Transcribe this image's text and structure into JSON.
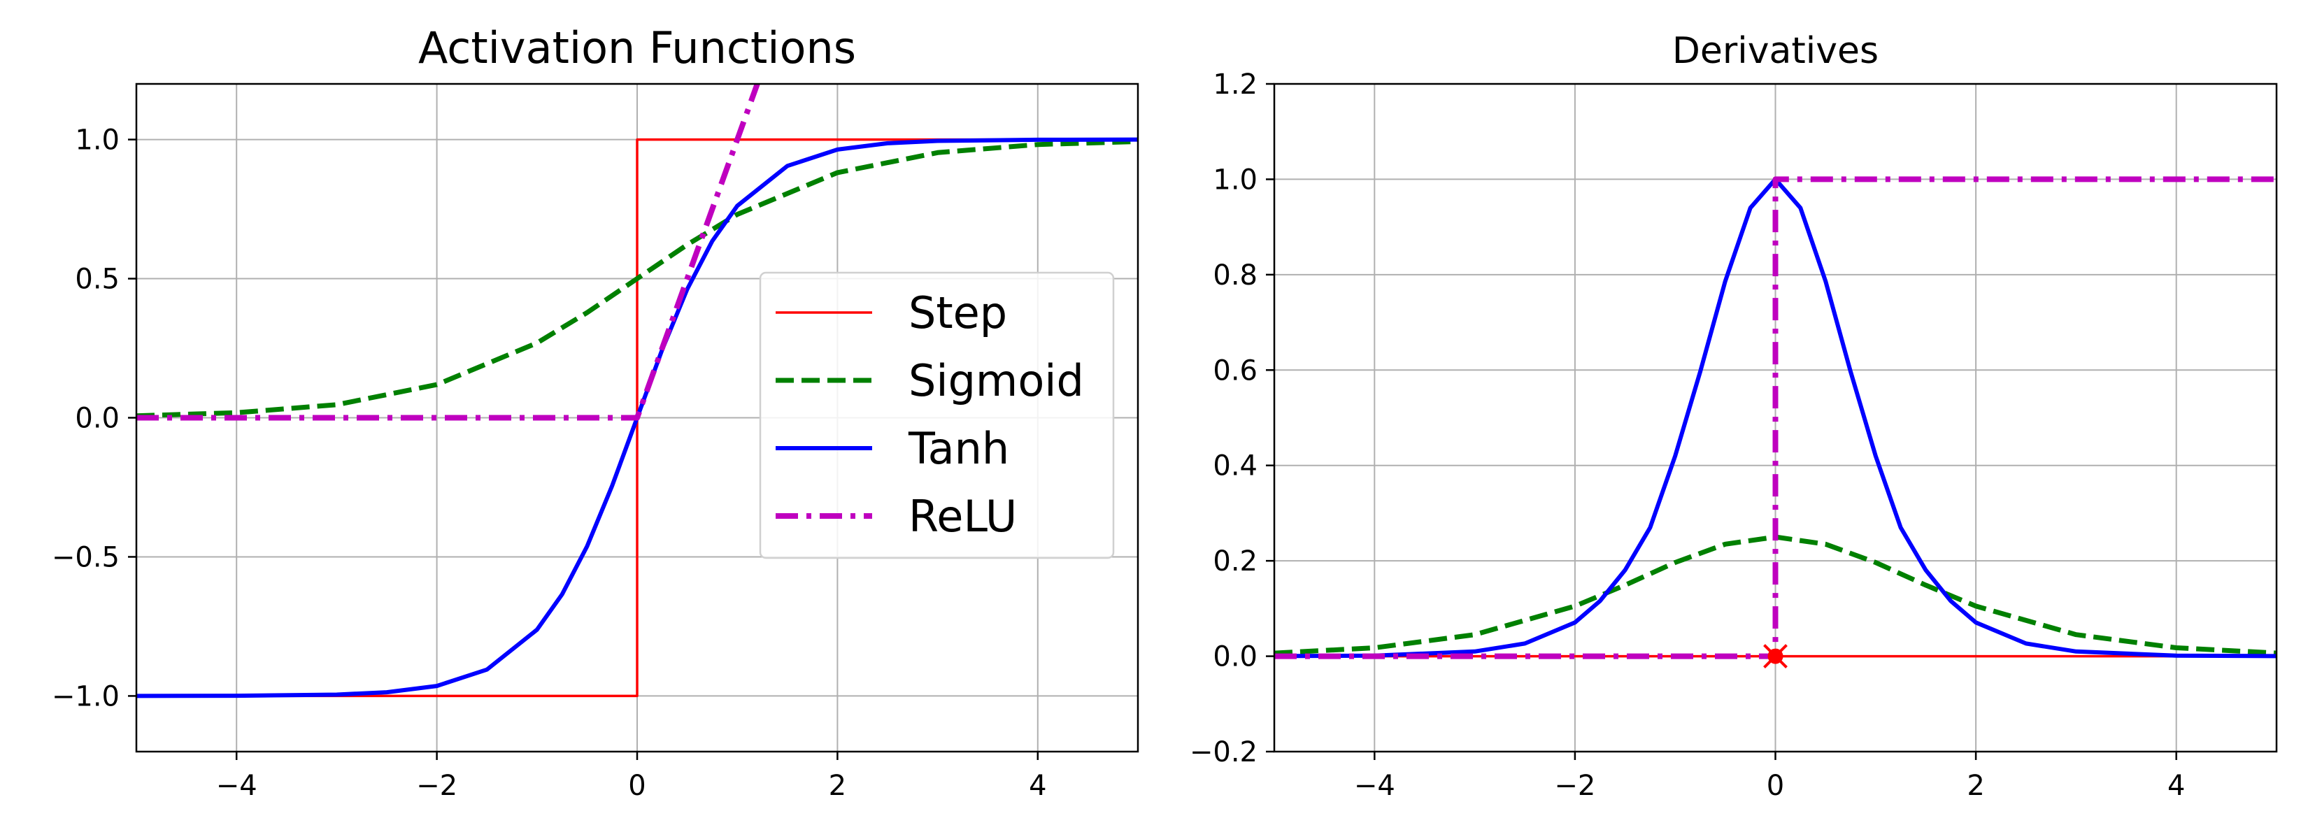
{
  "chart_data": [
    {
      "type": "line",
      "title": "Activation Functions",
      "xlabel": "",
      "ylabel": "",
      "xlim": [
        -5,
        5
      ],
      "ylim": [
        -1.2,
        1.2
      ],
      "xticks": [
        -4,
        -2,
        0,
        2,
        4
      ],
      "xtick_labels": [
        "−4",
        "−2",
        "0",
        "2",
        "4"
      ],
      "yticks": [
        -1.0,
        -0.5,
        0.0,
        0.5,
        1.0
      ],
      "ytick_labels": [
        "−1.0",
        "−0.5",
        "0.0",
        "0.5",
        "1.0"
      ],
      "grid": true,
      "legend": "center-right",
      "series": [
        {
          "name": "Step",
          "color": "#ff0000",
          "style": "solid",
          "x": [
            -5,
            0,
            0,
            5
          ],
          "y": [
            -1,
            -1,
            1,
            1
          ]
        },
        {
          "name": "Sigmoid",
          "color": "#008000",
          "style": "dashed",
          "x": [
            -5,
            -4,
            -3,
            -2,
            -1,
            -0.5,
            0,
            0.5,
            1,
            2,
            3,
            4,
            5
          ],
          "y": [
            0.007,
            0.018,
            0.047,
            0.119,
            0.269,
            0.378,
            0.5,
            0.622,
            0.731,
            0.881,
            0.953,
            0.982,
            0.993
          ]
        },
        {
          "name": "Tanh",
          "color": "#0000ff",
          "style": "solid",
          "x": [
            -5,
            -4,
            -3,
            -2.5,
            -2,
            -1.5,
            -1,
            -0.75,
            -0.5,
            -0.25,
            0,
            0.25,
            0.5,
            0.75,
            1,
            1.5,
            2,
            2.5,
            3,
            4,
            5
          ],
          "y": [
            -0.9999,
            -0.9993,
            -0.9951,
            -0.9866,
            -0.964,
            -0.9051,
            -0.7616,
            -0.6351,
            -0.4621,
            -0.2449,
            0,
            0.2449,
            0.4621,
            0.6351,
            0.7616,
            0.9051,
            0.964,
            0.9866,
            0.9951,
            0.9993,
            0.9999
          ]
        },
        {
          "name": "ReLU",
          "color": "#bf00bf",
          "style": "dashdot",
          "x": [
            -5,
            0,
            1.2
          ],
          "y": [
            0,
            0,
            1.2
          ]
        }
      ]
    },
    {
      "type": "line",
      "title": "Derivatives",
      "xlabel": "",
      "ylabel": "",
      "xlim": [
        -5,
        5
      ],
      "ylim": [
        -0.2,
        1.2
      ],
      "xticks": [
        -4,
        -2,
        0,
        2,
        4
      ],
      "xtick_labels": [
        "−4",
        "−2",
        "0",
        "2",
        "4"
      ],
      "yticks": [
        -0.2,
        0.0,
        0.2,
        0.4,
        0.6,
        0.8,
        1.0,
        1.2
      ],
      "ytick_labels": [
        "−0.2",
        "0.0",
        "0.2",
        "0.4",
        "0.6",
        "0.8",
        "1.0",
        "1.2"
      ],
      "grid": true,
      "series": [
        {
          "name": "Step",
          "color": "#ff0000",
          "style": "solid",
          "x": [
            -5,
            5
          ],
          "y": [
            0,
            0
          ]
        },
        {
          "name": "Sigmoid",
          "color": "#008000",
          "style": "dashed",
          "x": [
            -5,
            -4,
            -3,
            -2,
            -1.5,
            -1,
            -0.5,
            0,
            0.5,
            1,
            1.5,
            2,
            3,
            4,
            5
          ],
          "y": [
            0.0066,
            0.0177,
            0.0452,
            0.105,
            0.1491,
            0.1966,
            0.235,
            0.25,
            0.235,
            0.1966,
            0.1491,
            0.105,
            0.0452,
            0.0177,
            0.0066
          ]
        },
        {
          "name": "Tanh",
          "color": "#0000ff",
          "style": "solid",
          "x": [
            -5,
            -4,
            -3,
            -2.5,
            -2,
            -1.75,
            -1.5,
            -1.25,
            -1,
            -0.75,
            -0.5,
            -0.25,
            0,
            0.25,
            0.5,
            0.75,
            1,
            1.25,
            1.5,
            1.75,
            2,
            2.5,
            3,
            4,
            5
          ],
          "y": [
            0.0002,
            0.0013,
            0.0099,
            0.0266,
            0.0707,
            0.1158,
            0.1807,
            0.2698,
            0.42,
            0.5966,
            0.7864,
            0.94,
            1.0,
            0.94,
            0.7864,
            0.5966,
            0.42,
            0.2698,
            0.1807,
            0.1158,
            0.0707,
            0.0266,
            0.0099,
            0.0013,
            0.0002
          ]
        },
        {
          "name": "ReLU",
          "color": "#bf00bf",
          "style": "dashdot",
          "x": [
            -5,
            0,
            0,
            5
          ],
          "y": [
            0,
            0,
            1,
            1
          ]
        }
      ],
      "markers": [
        {
          "x": 0,
          "y": 0,
          "color": "#ff0000",
          "shape": "x-dot"
        }
      ]
    }
  ]
}
